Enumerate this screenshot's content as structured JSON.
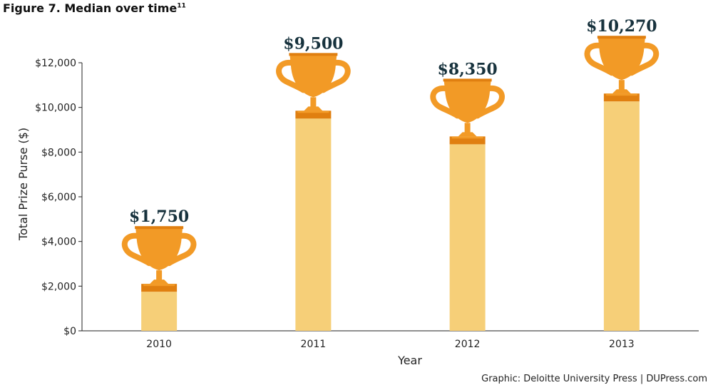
{
  "figure": {
    "title": "Figure 7. Median over time",
    "footnote": "11",
    "credit": "Graphic: Deloitte University Press  |  DUPress.com"
  },
  "colors": {
    "bar": "#f6cf78",
    "trophy": "#f29a26",
    "trophy_dark": "#e07f10",
    "label": "#17323d",
    "axis": "#222222"
  },
  "chart_data": {
    "type": "bar",
    "categories": [
      "2010",
      "2011",
      "2012",
      "2013"
    ],
    "values": [
      1750,
      9500,
      8350,
      10270
    ],
    "data_labels": [
      "$1,750",
      "$9,500",
      "$8,350",
      "$10,270"
    ],
    "title": "Figure 7. Median over time",
    "xlabel": "Year",
    "ylabel": "Total Prize Purse ($)",
    "ylim": [
      0,
      12000
    ],
    "yticks": [
      0,
      2000,
      4000,
      6000,
      8000,
      10000,
      12000
    ],
    "ytick_labels": [
      "$0",
      "$2,000",
      "$4,000",
      "$6,000",
      "$8,000",
      "$10,000",
      "$12,000"
    ],
    "grid": false,
    "bar_marker": "trophy-icon"
  }
}
